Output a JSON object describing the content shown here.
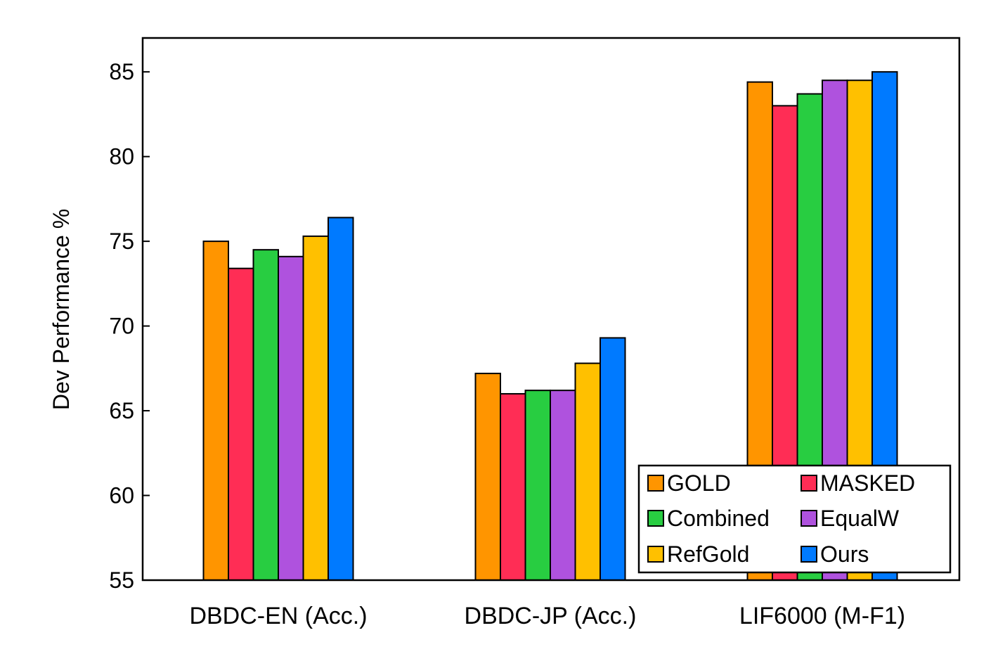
{
  "chart_data": {
    "type": "bar",
    "title": "",
    "xlabel": "",
    "ylabel": "Dev Performance %",
    "ylim": [
      55,
      87
    ],
    "yticks": [
      55,
      60,
      65,
      70,
      75,
      80,
      85
    ],
    "grid": false,
    "legend_position": "bottom-right",
    "legend_columns": 2,
    "categories": [
      "DBDC-EN (Acc.)",
      "DBDC-JP (Acc.)",
      "LIF6000 (M-F1)"
    ],
    "series": [
      {
        "name": "GOLD",
        "color": "#FF9500",
        "values": [
          75.0,
          67.2,
          84.4
        ]
      },
      {
        "name": "MASKED",
        "color": "#FF2D55",
        "values": [
          73.4,
          66.0,
          83.0
        ]
      },
      {
        "name": "Combined",
        "color": "#28CD41",
        "values": [
          74.5,
          66.2,
          83.7
        ]
      },
      {
        "name": "EqualW",
        "color": "#AF52DE",
        "values": [
          74.1,
          66.2,
          84.5
        ]
      },
      {
        "name": "RefGold",
        "color": "#FFC000",
        "values": [
          75.3,
          67.8,
          84.5
        ]
      },
      {
        "name": "Ours",
        "color": "#007AFF",
        "values": [
          76.4,
          69.3,
          85.0
        ]
      }
    ]
  }
}
